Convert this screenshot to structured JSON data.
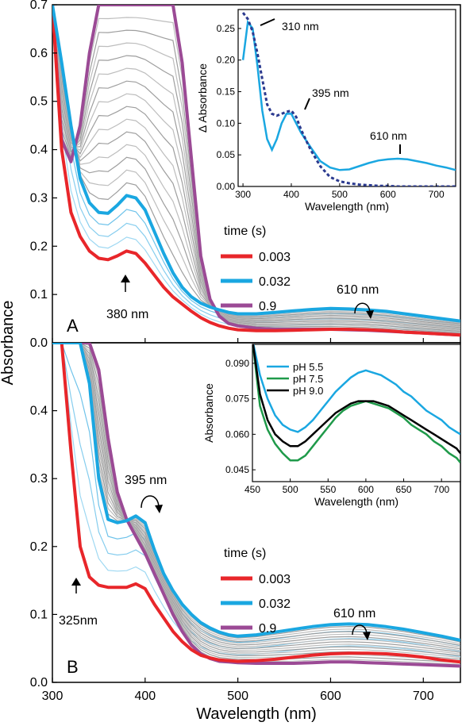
{
  "chart_data": [
    {
      "panel": "A",
      "type": "line",
      "xlabel": "Wavelength (nm)",
      "ylabel": "Absorbance",
      "xlim": [
        300,
        740
      ],
      "ylim": [
        0.0,
        0.7
      ],
      "x_ticks": [
        300,
        400,
        500,
        600,
        700
      ],
      "y_ticks": [
        0.0,
        0.1,
        0.2,
        0.3,
        0.4,
        0.5,
        0.6,
        0.7
      ],
      "legend_title": "time (s)",
      "x": [
        300,
        310,
        320,
        330,
        340,
        350,
        360,
        370,
        380,
        390,
        400,
        410,
        420,
        430,
        440,
        450,
        460,
        470,
        480,
        490,
        500,
        520,
        540,
        560,
        580,
        600,
        620,
        640,
        660,
        680,
        700,
        720,
        740
      ],
      "series": [
        {
          "name": "0.003",
          "color": "#e8262a",
          "width": 4,
          "values": [
            0.7,
            0.4,
            0.27,
            0.22,
            0.19,
            0.175,
            0.172,
            0.18,
            0.19,
            0.185,
            0.165,
            0.14,
            0.115,
            0.095,
            0.08,
            0.065,
            0.052,
            0.042,
            0.035,
            0.03,
            0.027,
            0.025,
            0.025,
            0.026,
            0.027,
            0.028,
            0.028,
            0.027,
            0.025,
            0.022,
            0.02,
            0.018,
            0.016
          ]
        },
        {
          "name": "0.032",
          "color": "#1aa7e1",
          "width": 4,
          "values": [
            0.7,
            0.58,
            0.45,
            0.34,
            0.29,
            0.27,
            0.268,
            0.285,
            0.305,
            0.3,
            0.275,
            0.23,
            0.185,
            0.145,
            0.115,
            0.095,
            0.082,
            0.074,
            0.068,
            0.063,
            0.06,
            0.06,
            0.063,
            0.066,
            0.069,
            0.071,
            0.07,
            0.068,
            0.065,
            0.06,
            0.055,
            0.05,
            0.045
          ]
        },
        {
          "name": "0.9",
          "color": "#9b4a95",
          "width": 4,
          "values": [
            0.7,
            0.42,
            0.375,
            0.45,
            0.6,
            0.7,
            0.7,
            0.7,
            0.7,
            0.7,
            0.7,
            0.7,
            0.7,
            0.7,
            0.58,
            0.38,
            0.18,
            0.09,
            0.055,
            0.04,
            0.035,
            0.03,
            0.028,
            0.028,
            0.028,
            0.028,
            0.027,
            0.026,
            0.024,
            0.022,
            0.02,
            0.018,
            0.016
          ]
        }
      ],
      "annotations": [
        "380 nm",
        "610 nm"
      ],
      "panel_label": "A",
      "inset": {
        "type": "line",
        "xlabel": "Wavelength (nm)",
        "ylabel": "Δ Absorbance",
        "xlim": [
          290,
          740
        ],
        "ylim": [
          0.0,
          0.28
        ],
        "x_ticks": [
          300,
          400,
          500,
          600,
          700
        ],
        "y_ticks": [
          0.0,
          0.05,
          0.1,
          0.15,
          0.2,
          0.25
        ],
        "x": [
          300,
          310,
          320,
          330,
          340,
          350,
          360,
          370,
          380,
          390,
          400,
          410,
          420,
          440,
          460,
          480,
          500,
          520,
          540,
          560,
          580,
          600,
          620,
          640,
          660,
          680,
          700,
          720,
          740
        ],
        "series": [
          {
            "style": "solid",
            "color": "#1aa7e1",
            "values": [
              0.2,
              0.26,
              0.25,
              0.19,
              0.12,
              0.075,
              0.058,
              0.075,
              0.1,
              0.115,
              0.115,
              0.1,
              0.085,
              0.062,
              0.04,
              0.03,
              0.026,
              0.027,
              0.032,
              0.037,
              0.041,
              0.043,
              0.044,
              0.043,
              0.04,
              0.037,
              0.033,
              0.03,
              0.026
            ]
          },
          {
            "style": "dotted",
            "color": "#2b3a8f",
            "values": [
              0.275,
              0.265,
              0.245,
              0.21,
              0.17,
              0.13,
              0.115,
              0.112,
              0.115,
              0.118,
              0.12,
              0.11,
              0.09,
              0.058,
              0.032,
              0.015,
              0.008,
              0.005,
              0.003,
              0.002,
              0.001,
              0.001,
              0.0,
              0.0,
              0.0,
              0.0,
              0.0,
              0.0,
              0.0
            ]
          }
        ],
        "annotations": [
          "310 nm",
          "395 nm",
          "610 nm"
        ]
      }
    },
    {
      "panel": "B",
      "type": "line",
      "xlabel": "Wavelength (nm)",
      "ylabel": "Absorbance",
      "xlim": [
        300,
        740
      ],
      "ylim": [
        0.0,
        0.5
      ],
      "x_ticks": [
        300,
        400,
        500,
        600,
        700
      ],
      "y_ticks": [
        0.0,
        0.1,
        0.2,
        0.3,
        0.4
      ],
      "legend_title": "time (s)",
      "x": [
        300,
        310,
        320,
        330,
        340,
        350,
        360,
        370,
        380,
        390,
        400,
        410,
        420,
        430,
        440,
        450,
        460,
        470,
        480,
        490,
        500,
        520,
        540,
        560,
        580,
        600,
        620,
        640,
        660,
        680,
        700,
        720,
        740
      ],
      "series": [
        {
          "name": "0.003",
          "color": "#e8262a",
          "width": 4,
          "values": [
            0.5,
            0.5,
            0.34,
            0.2,
            0.155,
            0.143,
            0.14,
            0.14,
            0.14,
            0.145,
            0.138,
            0.115,
            0.095,
            0.075,
            0.06,
            0.048,
            0.04,
            0.036,
            0.033,
            0.032,
            0.031,
            0.032,
            0.034,
            0.037,
            0.04,
            0.042,
            0.043,
            0.043,
            0.042,
            0.04,
            0.037,
            0.033,
            0.03
          ]
        },
        {
          "name": "0.032",
          "color": "#1aa7e1",
          "width": 4,
          "values": [
            0.5,
            0.5,
            0.5,
            0.5,
            0.44,
            0.3,
            0.24,
            0.235,
            0.238,
            0.245,
            0.235,
            0.195,
            0.16,
            0.135,
            0.115,
            0.1,
            0.088,
            0.08,
            0.074,
            0.07,
            0.068,
            0.07,
            0.074,
            0.078,
            0.082,
            0.085,
            0.086,
            0.085,
            0.082,
            0.078,
            0.073,
            0.068,
            0.062
          ]
        },
        {
          "name": "0.9",
          "color": "#9b4a95",
          "width": 4,
          "values": [
            0.5,
            0.5,
            0.5,
            0.5,
            0.5,
            0.46,
            0.36,
            0.28,
            0.24,
            0.215,
            0.19,
            0.16,
            0.13,
            0.1,
            0.075,
            0.055,
            0.042,
            0.035,
            0.031,
            0.03,
            0.029,
            0.028,
            0.028,
            0.028,
            0.029,
            0.03,
            0.03,
            0.029,
            0.028,
            0.027,
            0.026,
            0.025,
            0.024
          ]
        }
      ],
      "annotations": [
        "395 nm",
        "325nm",
        "610 nm"
      ],
      "panel_label": "B",
      "inset": {
        "type": "line",
        "xlabel": "Wavelength (nm)",
        "ylabel": "Absorbance",
        "xlim": [
          450,
          725
        ],
        "ylim": [
          0.04,
          0.098
        ],
        "x_ticks": [
          450,
          500,
          550,
          600,
          650,
          700
        ],
        "y_ticks": [
          0.045,
          0.06,
          0.075,
          0.09
        ],
        "x": [
          450,
          460,
          470,
          480,
          490,
          500,
          510,
          520,
          530,
          540,
          550,
          560,
          570,
          580,
          590,
          600,
          610,
          620,
          630,
          640,
          650,
          660,
          670,
          680,
          690,
          700,
          710,
          720,
          725
        ],
        "series": [
          {
            "name": "pH 5.5",
            "color": "#1aa7e1",
            "values": [
              0.1,
              0.085,
              0.075,
              0.068,
              0.064,
              0.062,
              0.061,
              0.063,
              0.066,
              0.07,
              0.074,
              0.078,
              0.081,
              0.084,
              0.086,
              0.087,
              0.086,
              0.085,
              0.083,
              0.081,
              0.078,
              0.076,
              0.073,
              0.07,
              0.068,
              0.066,
              0.063,
              0.061,
              0.06
            ]
          },
          {
            "name": "pH 7.5",
            "color": "#1f9a4a",
            "values": [
              0.1,
              0.072,
              0.062,
              0.056,
              0.052,
              0.049,
              0.049,
              0.051,
              0.055,
              0.059,
              0.063,
              0.067,
              0.07,
              0.072,
              0.073,
              0.074,
              0.073,
              0.072,
              0.071,
              0.069,
              0.067,
              0.064,
              0.062,
              0.06,
              0.057,
              0.055,
              0.052,
              0.05,
              0.048
            ]
          },
          {
            "name": "pH 9.0",
            "color": "#000000",
            "values": [
              0.1,
              0.077,
              0.066,
              0.06,
              0.057,
              0.055,
              0.055,
              0.057,
              0.06,
              0.063,
              0.066,
              0.069,
              0.071,
              0.073,
              0.074,
              0.074,
              0.074,
              0.073,
              0.072,
              0.07,
              0.068,
              0.066,
              0.064,
              0.062,
              0.06,
              0.058,
              0.056,
              0.054,
              0.052
            ]
          }
        ]
      }
    }
  ]
}
